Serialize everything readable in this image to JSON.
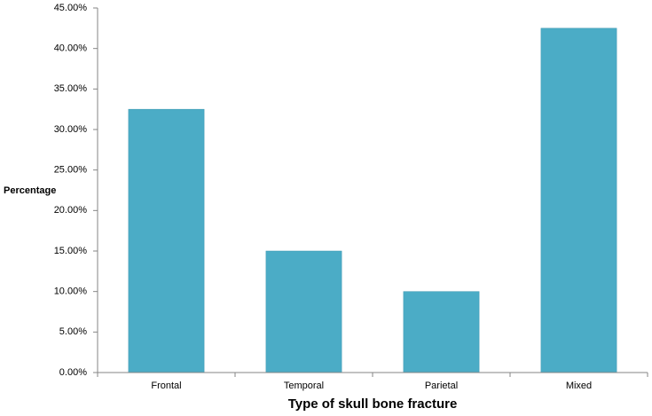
{
  "chart_data": {
    "type": "bar",
    "x_label": "Type of skull bone fracture",
    "y_label": "Percentage",
    "categories": [
      "Frontal",
      "Temporal",
      "Parietal",
      "Mixed"
    ],
    "values": [
      32.5,
      15,
      10,
      42.5
    ],
    "color": "#4bacc6",
    "ylim": [
      0,
      45
    ],
    "yticks": [
      {
        "value": 0,
        "label": "0.00%"
      },
      {
        "value": 5,
        "label": "5.00%"
      },
      {
        "value": 10,
        "label": "10.00%"
      },
      {
        "value": 15,
        "label": "15.00%"
      },
      {
        "value": 20,
        "label": "20.00%"
      },
      {
        "value": 25,
        "label": "25.00%"
      },
      {
        "value": 30,
        "label": "30.00%"
      },
      {
        "value": 35,
        "label": "35.00%"
      },
      {
        "value": 40,
        "label": "40.00%"
      },
      {
        "value": 45,
        "label": "45.00%"
      }
    ],
    "grid": false
  }
}
